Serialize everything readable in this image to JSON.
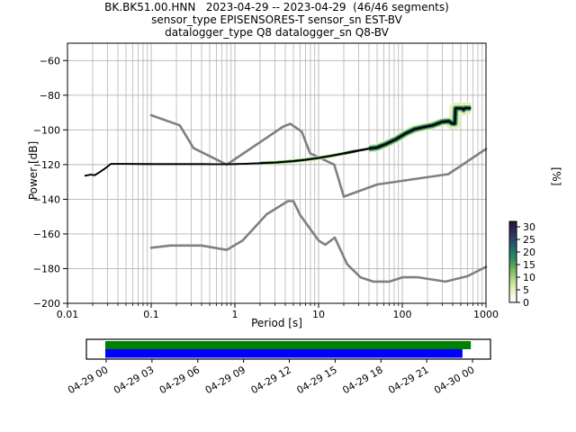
{
  "title": {
    "line1": "BK.BK51.00.HNN   2023-04-29 -- 2023-04-29  (46/46 segments)",
    "line2": "sensor_type EPISENSORES-T sensor_sn EST-BV",
    "line3": "datalogger_type Q8 datalogger_sn Q8-BV"
  },
  "chart_data": {
    "type": "line",
    "title": "BK.BK51.00.HNN 2023-04-29 -- 2023-04-29 (46/46 segments)",
    "xlabel": "Period [s]",
    "ylabel": "Power [dB]",
    "x_scale": "log",
    "xlim": [
      0.01,
      1000
    ],
    "ylim": [
      -200,
      -50
    ],
    "x_ticks": [
      0.01,
      0.1,
      1,
      10,
      100,
      1000
    ],
    "x_tick_labels": [
      "0.01",
      "0.1",
      "1",
      "10",
      "100",
      "1000"
    ],
    "y_ticks": [
      -200,
      -180,
      -160,
      -140,
      -120,
      -100,
      -80,
      -60
    ],
    "grid": true,
    "grid_color": "#b4b4b4",
    "series": [
      {
        "name": "noise-model-high-NHNM",
        "color": "#808080",
        "width": 2.6,
        "points": [
          [
            0.1,
            -91.5
          ],
          [
            0.22,
            -97.4
          ],
          [
            0.32,
            -110.5
          ],
          [
            0.8,
            -120.0
          ],
          [
            3.8,
            -98.0
          ],
          [
            4.6,
            -96.5
          ],
          [
            6.3,
            -101.0
          ],
          [
            7.9,
            -113.5
          ],
          [
            15.4,
            -120.0
          ],
          [
            20.0,
            -138.5
          ],
          [
            50.0,
            -131.5
          ],
          [
            354.8,
            -125.5
          ],
          [
            1000.0,
            -111.0
          ]
        ]
      },
      {
        "name": "noise-model-low-NLNM",
        "color": "#808080",
        "width": 2.6,
        "points": [
          [
            0.1,
            -168.0
          ],
          [
            0.17,
            -166.7
          ],
          [
            0.4,
            -166.7
          ],
          [
            0.8,
            -169.2
          ],
          [
            1.24,
            -163.7
          ],
          [
            2.4,
            -148.6
          ],
          [
            4.3,
            -141.1
          ],
          [
            5.0,
            -141.1
          ],
          [
            6.0,
            -149.0
          ],
          [
            10.0,
            -163.8
          ],
          [
            12.0,
            -166.2
          ],
          [
            15.6,
            -162.1
          ],
          [
            21.9,
            -177.5
          ],
          [
            31.6,
            -185.0
          ],
          [
            45.0,
            -187.5
          ],
          [
            70.0,
            -187.5
          ],
          [
            101.0,
            -185.0
          ],
          [
            154.0,
            -185.0
          ],
          [
            328.0,
            -187.5
          ],
          [
            600.0,
            -184.4
          ],
          [
            1000.0,
            -179.0
          ]
        ]
      },
      {
        "name": "psd-mode",
        "color": "#000000",
        "width": 1.8,
        "points": [
          [
            0.016,
            -126.5
          ],
          [
            0.019,
            -125.8
          ],
          [
            0.021,
            -126.2
          ],
          [
            0.024,
            -124.5
          ],
          [
            0.028,
            -122.3
          ],
          [
            0.033,
            -119.6
          ],
          [
            0.05,
            -119.6
          ],
          [
            0.1,
            -119.7
          ],
          [
            0.2,
            -119.7
          ],
          [
            0.4,
            -119.7
          ],
          [
            0.8,
            -119.8
          ],
          [
            1.2,
            -119.6
          ],
          [
            2,
            -119.2
          ],
          [
            3,
            -118.8
          ],
          [
            5,
            -118.0
          ],
          [
            7,
            -117.2
          ],
          [
            10,
            -116.2
          ],
          [
            14,
            -115.0
          ],
          [
            20,
            -113.6
          ],
          [
            28,
            -112.2
          ],
          [
            40,
            -110.8
          ],
          [
            50,
            -110.2
          ],
          [
            65,
            -108.0
          ],
          [
            85,
            -105.3
          ],
          [
            110,
            -102.0
          ],
          [
            140,
            -99.6
          ],
          [
            180,
            -98.4
          ],
          [
            230,
            -97.4
          ],
          [
            300,
            -95.3
          ],
          [
            360,
            -95.0
          ],
          [
            395,
            -96.3
          ],
          [
            425,
            -96.3
          ],
          [
            432,
            -87.6
          ],
          [
            520,
            -87.6
          ],
          [
            540,
            -88.4
          ],
          [
            560,
            -87.4
          ],
          [
            660,
            -87.5
          ]
        ]
      }
    ],
    "density_cloud": {
      "description": "probability density histogram around psd-mode line",
      "layers": [
        {
          "color": "#e6f0bd",
          "width": 13,
          "t_from": 330,
          "t_to": 660
        },
        {
          "color": "#e6f0bd",
          "width": 9,
          "t_from": 30,
          "t_to": 660
        },
        {
          "color": "#e6f0bd",
          "width": 4.5,
          "t_from": 1.4,
          "t_to": 30
        },
        {
          "color": "#4aa452",
          "width": 6,
          "t_from": 30,
          "t_to": 660
        },
        {
          "color": "#4aa452",
          "width": 3,
          "t_from": 1.4,
          "t_to": 30
        },
        {
          "color": "#1f7a6b",
          "width": 4,
          "t_from": 30,
          "t_to": 660
        },
        {
          "color": "#1f7a6b",
          "width": 2,
          "t_from": 1.6,
          "t_to": 30
        },
        {
          "color": "#262052",
          "width": 2.6,
          "t_from": 20,
          "t_to": 660
        },
        {
          "color": "#262052",
          "width": 1.8,
          "t_from": 0.016,
          "t_to": 20
        }
      ]
    },
    "colorbar": {
      "label": "[%]",
      "ticks": [
        0,
        5,
        10,
        15,
        20,
        25,
        30
      ],
      "gradient_bottom_to_top": [
        "#ffffff",
        "#f5f5e0",
        "#dcebb4",
        "#b5d field",
        "#8cc267",
        "#57a55a",
        "#2f8a62",
        "#20766b",
        "#25586e",
        "#2d3a68",
        "#2d2356",
        "#231238"
      ]
    },
    "noise_model_color": "#808080"
  },
  "timeline": {
    "hours_range": [
      0,
      24
    ],
    "tick_labels": [
      "04-29 00",
      "04-29 03",
      "04-29 06",
      "04-29 09",
      "04-29 12",
      "04-29 15",
      "04-29 18",
      "04-29 21",
      "04-30 00"
    ],
    "bars": [
      {
        "name": "coverage-data",
        "color": "#008000",
        "start_h": 0.0,
        "end_h": 23.95
      },
      {
        "name": "coverage-used",
        "color": "#0000ff",
        "start_h": 0.0,
        "end_h": 23.4
      }
    ]
  }
}
